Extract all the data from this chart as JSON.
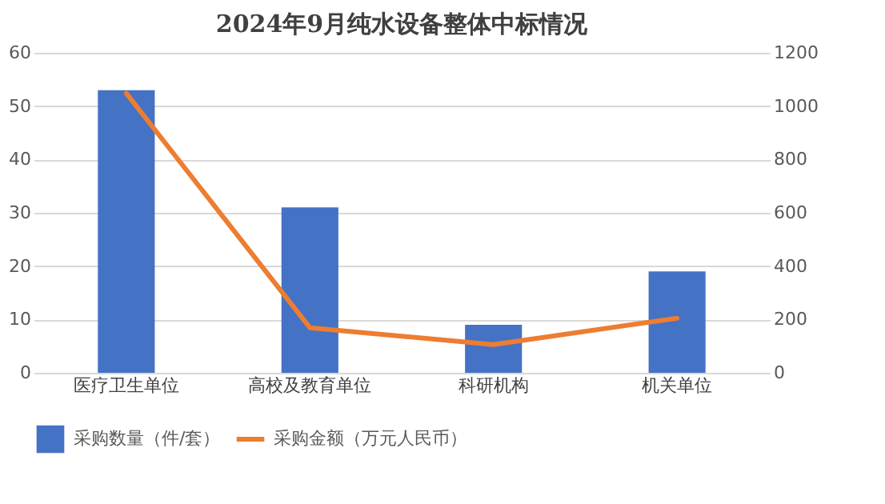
{
  "chart_data": {
    "type": "bar",
    "title": "2024年9月纯水设备整体中标情况",
    "categories": [
      "医疗卫生单位",
      "高校及教育单位",
      "科研机构",
      "机关单位"
    ],
    "series": [
      {
        "name": "采购数量（件/套）",
        "color": "#4472c4",
        "values": [
          53,
          31,
          9,
          19
        ]
      },
      {
        "name": "采购金额（万元人民币）",
        "type": "line",
        "axis": "y2",
        "color": "#ed7d31",
        "values": [
          1048,
          169,
          106,
          205
        ]
      }
    ],
    "ylim": [
      0,
      60
    ],
    "yticks": [
      0,
      10,
      20,
      30,
      40,
      50,
      60
    ],
    "y2lim": [
      0,
      1200
    ],
    "y2ticks": [
      0,
      200,
      400,
      600,
      800,
      1000,
      1200
    ],
    "grid": "y",
    "legend": "bottom"
  }
}
